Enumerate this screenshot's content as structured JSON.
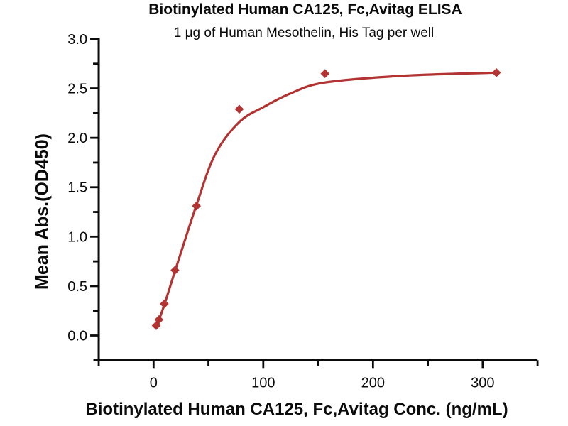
{
  "chart_data": {
    "type": "scatter",
    "title": "Biotinylated Human CA125, Fc,Avitag ELISA",
    "subtitle": "1 μg of Human Mesothelin, His Tag per well",
    "xlabel": "Biotinylated Human CA125, Fc,Avitag Conc. (ng/mL)",
    "ylabel": "Mean Abs.(OD450)",
    "grid": false,
    "legend": false,
    "x_axis": {
      "min": -50,
      "max": 350,
      "major_ticks": [
        0,
        100,
        200,
        300
      ],
      "tick_labels": [
        "0",
        "100",
        "200",
        "300"
      ],
      "minor_ticks": [
        -50,
        50,
        150,
        250,
        350
      ]
    },
    "y_axis": {
      "min": -0.25,
      "max": 3.0,
      "major_ticks": [
        0.0,
        0.5,
        1.0,
        1.5,
        2.0,
        2.5,
        3.0
      ],
      "tick_labels": [
        "0.0",
        "0.5",
        "1.0",
        "1.5",
        "2.0",
        "2.5",
        "3.0"
      ],
      "minor_ticks": [
        0.25,
        0.75,
        1.25,
        1.75,
        2.25,
        2.75
      ]
    },
    "series": [
      {
        "name": "Biotinylated Human CA125, Fc,Avitag",
        "marker": "diamond",
        "color": "#b23331",
        "x": [
          2.4,
          4.9,
          9.8,
          19.5,
          39.1,
          78.1,
          156.3,
          312.5
        ],
        "y": [
          0.1,
          0.16,
          0.32,
          0.66,
          1.31,
          2.29,
          2.65,
          2.66
        ]
      }
    ],
    "fit_curve": {
      "name": "4PL fit curve",
      "color": "#b23331",
      "x": [
        2.4,
        4.9,
        9.8,
        19.5,
        39.1,
        56,
        78.1,
        100,
        125,
        156.3,
        230,
        312.5
      ],
      "y": [
        0.1,
        0.16,
        0.31,
        0.65,
        1.32,
        1.83,
        2.16,
        2.31,
        2.45,
        2.56,
        2.63,
        2.66
      ]
    },
    "colors": {
      "curve": "#b23331",
      "marker": "#b23331",
      "axis": "#0b0b0b",
      "text": "#0b0b0b",
      "background": "#ffffff"
    }
  }
}
